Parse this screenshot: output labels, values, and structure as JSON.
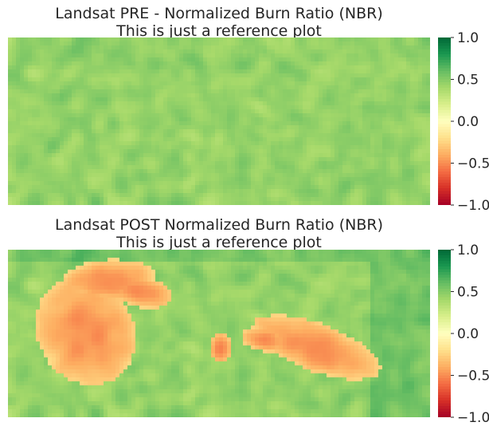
{
  "chart_data": [
    {
      "type": "heatmap",
      "title": "Landsat PRE - Normalized Burn Ratio (NBR)",
      "subtitle": "This is just a reference plot",
      "colormap": "RdYlGn",
      "vmin": -1.0,
      "vmax": 1.0,
      "colorbar_ticks": [
        1.0,
        0.5,
        0.0,
        -0.5,
        -1.0
      ],
      "colorbar_tick_labels": [
        "1.0",
        "0.5",
        "0.0",
        "−0.5",
        "−1.0"
      ],
      "value_range_shown": [
        0.1,
        0.7
      ],
      "grid": false,
      "axes_visible": false
    },
    {
      "type": "heatmap",
      "title": "Landsat POST Normalized Burn Ratio (NBR)",
      "subtitle": "This is just a reference plot",
      "colormap": "RdYlGn",
      "vmin": -1.0,
      "vmax": 1.0,
      "colorbar_ticks": [
        1.0,
        0.5,
        0.0,
        -0.5,
        -1.0
      ],
      "colorbar_tick_labels": [
        "1.0",
        "0.5",
        "0.0",
        "−0.5",
        "−1.0"
      ],
      "value_range_shown": [
        -0.5,
        0.7
      ],
      "grid": false,
      "axes_visible": false
    }
  ]
}
